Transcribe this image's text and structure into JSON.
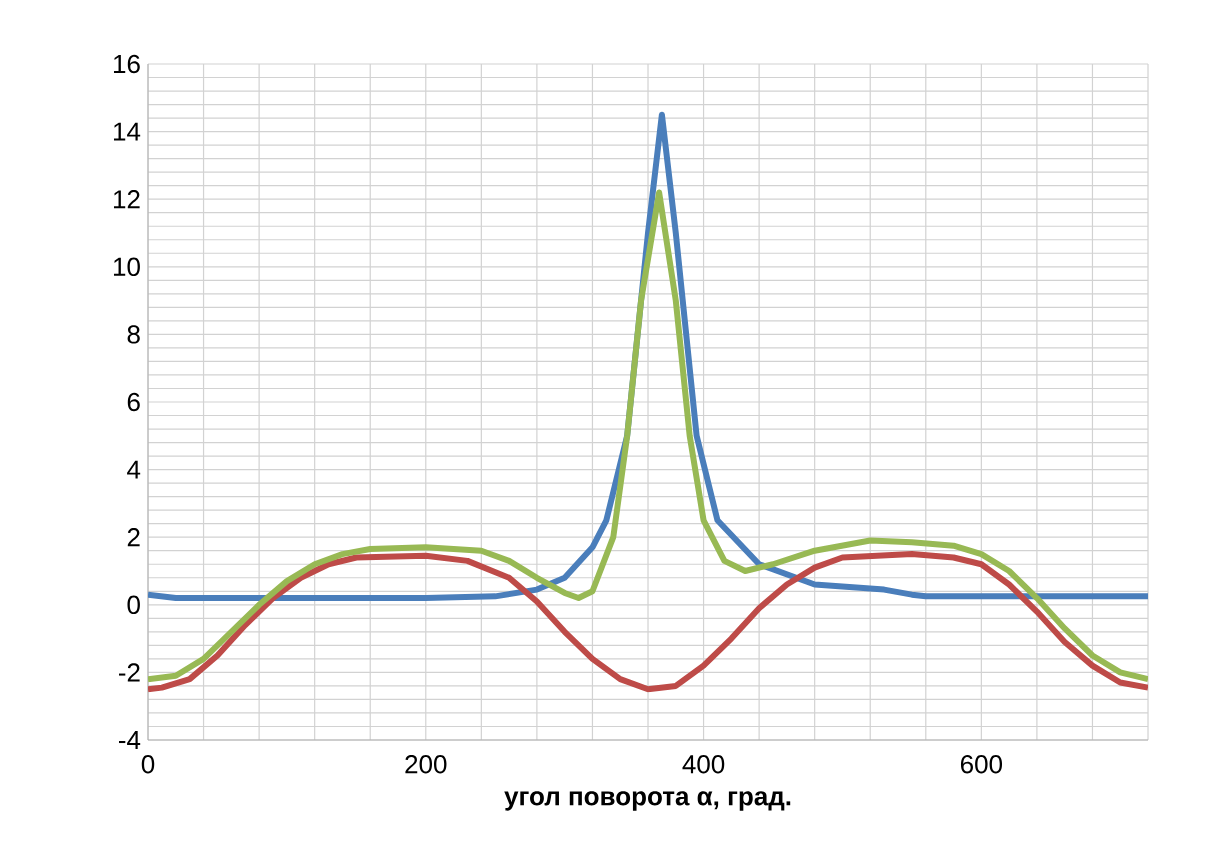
{
  "chart_data": {
    "type": "line",
    "xlabel": "угол поворота α, град.",
    "xlim": [
      0,
      720
    ],
    "ylim": [
      -4,
      16
    ],
    "xticks": [
      0,
      {
        "value": 40,
        "label": null
      },
      {
        "value": 80,
        "label": null
      },
      {
        "value": 120,
        "label": null
      },
      {
        "value": 160,
        "label": null
      },
      200,
      {
        "value": 240,
        "label": null
      },
      {
        "value": 280,
        "label": null
      },
      {
        "value": 320,
        "label": null
      },
      {
        "value": 360,
        "label": null
      },
      400,
      {
        "value": 440,
        "label": null
      },
      {
        "value": 480,
        "label": null
      },
      {
        "value": 520,
        "label": null
      },
      {
        "value": 560,
        "label": null
      },
      600,
      {
        "value": 640,
        "label": null
      },
      {
        "value": 680,
        "label": null
      },
      {
        "value": 720,
        "label": null
      }
    ],
    "yticks": [
      -4,
      {
        "value": -3.6,
        "label": null
      },
      {
        "value": -3.2,
        "label": null
      },
      {
        "value": -2.8,
        "label": null
      },
      {
        "value": -2.4,
        "label": null
      },
      -2,
      {
        "value": -1.6,
        "label": null
      },
      {
        "value": -1.2,
        "label": null
      },
      {
        "value": -0.8,
        "label": null
      },
      {
        "value": -0.4,
        "label": null
      },
      0,
      {
        "value": 0.4,
        "label": null
      },
      {
        "value": 0.8,
        "label": null
      },
      {
        "value": 1.2,
        "label": null
      },
      {
        "value": 1.6,
        "label": null
      },
      2,
      {
        "value": 2.4,
        "label": null
      },
      {
        "value": 2.8,
        "label": null
      },
      {
        "value": 3.2,
        "label": null
      },
      {
        "value": 3.6,
        "label": null
      },
      4,
      {
        "value": 4.4,
        "label": null
      },
      {
        "value": 4.8,
        "label": null
      },
      {
        "value": 5.2,
        "label": null
      },
      {
        "value": 5.6,
        "label": null
      },
      6,
      {
        "value": 6.4,
        "label": null
      },
      {
        "value": 6.8,
        "label": null
      },
      {
        "value": 7.2,
        "label": null
      },
      {
        "value": 7.6,
        "label": null
      },
      8,
      {
        "value": 8.4,
        "label": null
      },
      {
        "value": 8.8,
        "label": null
      },
      {
        "value": 9.2,
        "label": null
      },
      {
        "value": 9.6,
        "label": null
      },
      10,
      {
        "value": 10.4,
        "label": null
      },
      {
        "value": 10.8,
        "label": null
      },
      {
        "value": 11.2,
        "label": null
      },
      {
        "value": 11.6,
        "label": null
      },
      12,
      {
        "value": 12.4,
        "label": null
      },
      {
        "value": 12.8,
        "label": null
      },
      {
        "value": 13.2,
        "label": null
      },
      {
        "value": 13.6,
        "label": null
      },
      14,
      {
        "value": 14.4,
        "label": null
      },
      {
        "value": 14.8,
        "label": null
      },
      {
        "value": 15.2,
        "label": null
      },
      {
        "value": 15.6,
        "label": null
      },
      16
    ],
    "grid": true,
    "marker": "none",
    "line_style": "solid",
    "series": [
      {
        "color": "#4a7ebb",
        "x": [
          0,
          20,
          60,
          120,
          200,
          250,
          280,
          300,
          320,
          330,
          345,
          360,
          370,
          380,
          395,
          410,
          440,
          480,
          530,
          550,
          560,
          620,
          720
        ],
        "values": [
          0.3,
          0.2,
          0.2,
          0.2,
          0.2,
          0.25,
          0.45,
          0.8,
          1.7,
          2.5,
          5,
          11,
          14.5,
          11,
          5,
          2.5,
          1.2,
          0.6,
          0.45,
          0.3,
          0.25,
          0.25,
          0.25
        ]
      },
      {
        "color": "#be4b48",
        "x": [
          0,
          10,
          30,
          50,
          70,
          90,
          110,
          130,
          150,
          200,
          230,
          260,
          280,
          300,
          320,
          340,
          360,
          380,
          400,
          420,
          440,
          460,
          480,
          500,
          550,
          580,
          600,
          620,
          640,
          660,
          680,
          700,
          720
        ],
        "values": [
          -2.5,
          -2.45,
          -2.2,
          -1.5,
          -0.6,
          0.2,
          0.8,
          1.2,
          1.4,
          1.45,
          1.3,
          0.8,
          0.1,
          -0.8,
          -1.6,
          -2.2,
          -2.5,
          -2.4,
          -1.8,
          -1.0,
          -0.1,
          0.6,
          1.1,
          1.4,
          1.5,
          1.4,
          1.2,
          0.6,
          -0.2,
          -1.1,
          -1.8,
          -2.3,
          -2.45
        ]
      },
      {
        "color": "#98b954",
        "x": [
          0,
          20,
          40,
          60,
          80,
          100,
          120,
          140,
          160,
          200,
          240,
          260,
          280,
          300,
          310,
          320,
          335,
          345,
          355,
          368,
          380,
          390,
          400,
          415,
          430,
          450,
          480,
          520,
          550,
          580,
          600,
          620,
          640,
          660,
          680,
          700,
          720
        ],
        "values": [
          -2.2,
          -2.1,
          -1.6,
          -0.8,
          0,
          0.7,
          1.2,
          1.5,
          1.65,
          1.7,
          1.6,
          1.3,
          0.8,
          0.35,
          0.2,
          0.4,
          2,
          5,
          9,
          12.2,
          9,
          5,
          2.5,
          1.3,
          1.0,
          1.2,
          1.6,
          1.9,
          1.85,
          1.75,
          1.5,
          1.0,
          0.2,
          -0.7,
          -1.5,
          -2.0,
          -2.2
        ]
      }
    ]
  }
}
